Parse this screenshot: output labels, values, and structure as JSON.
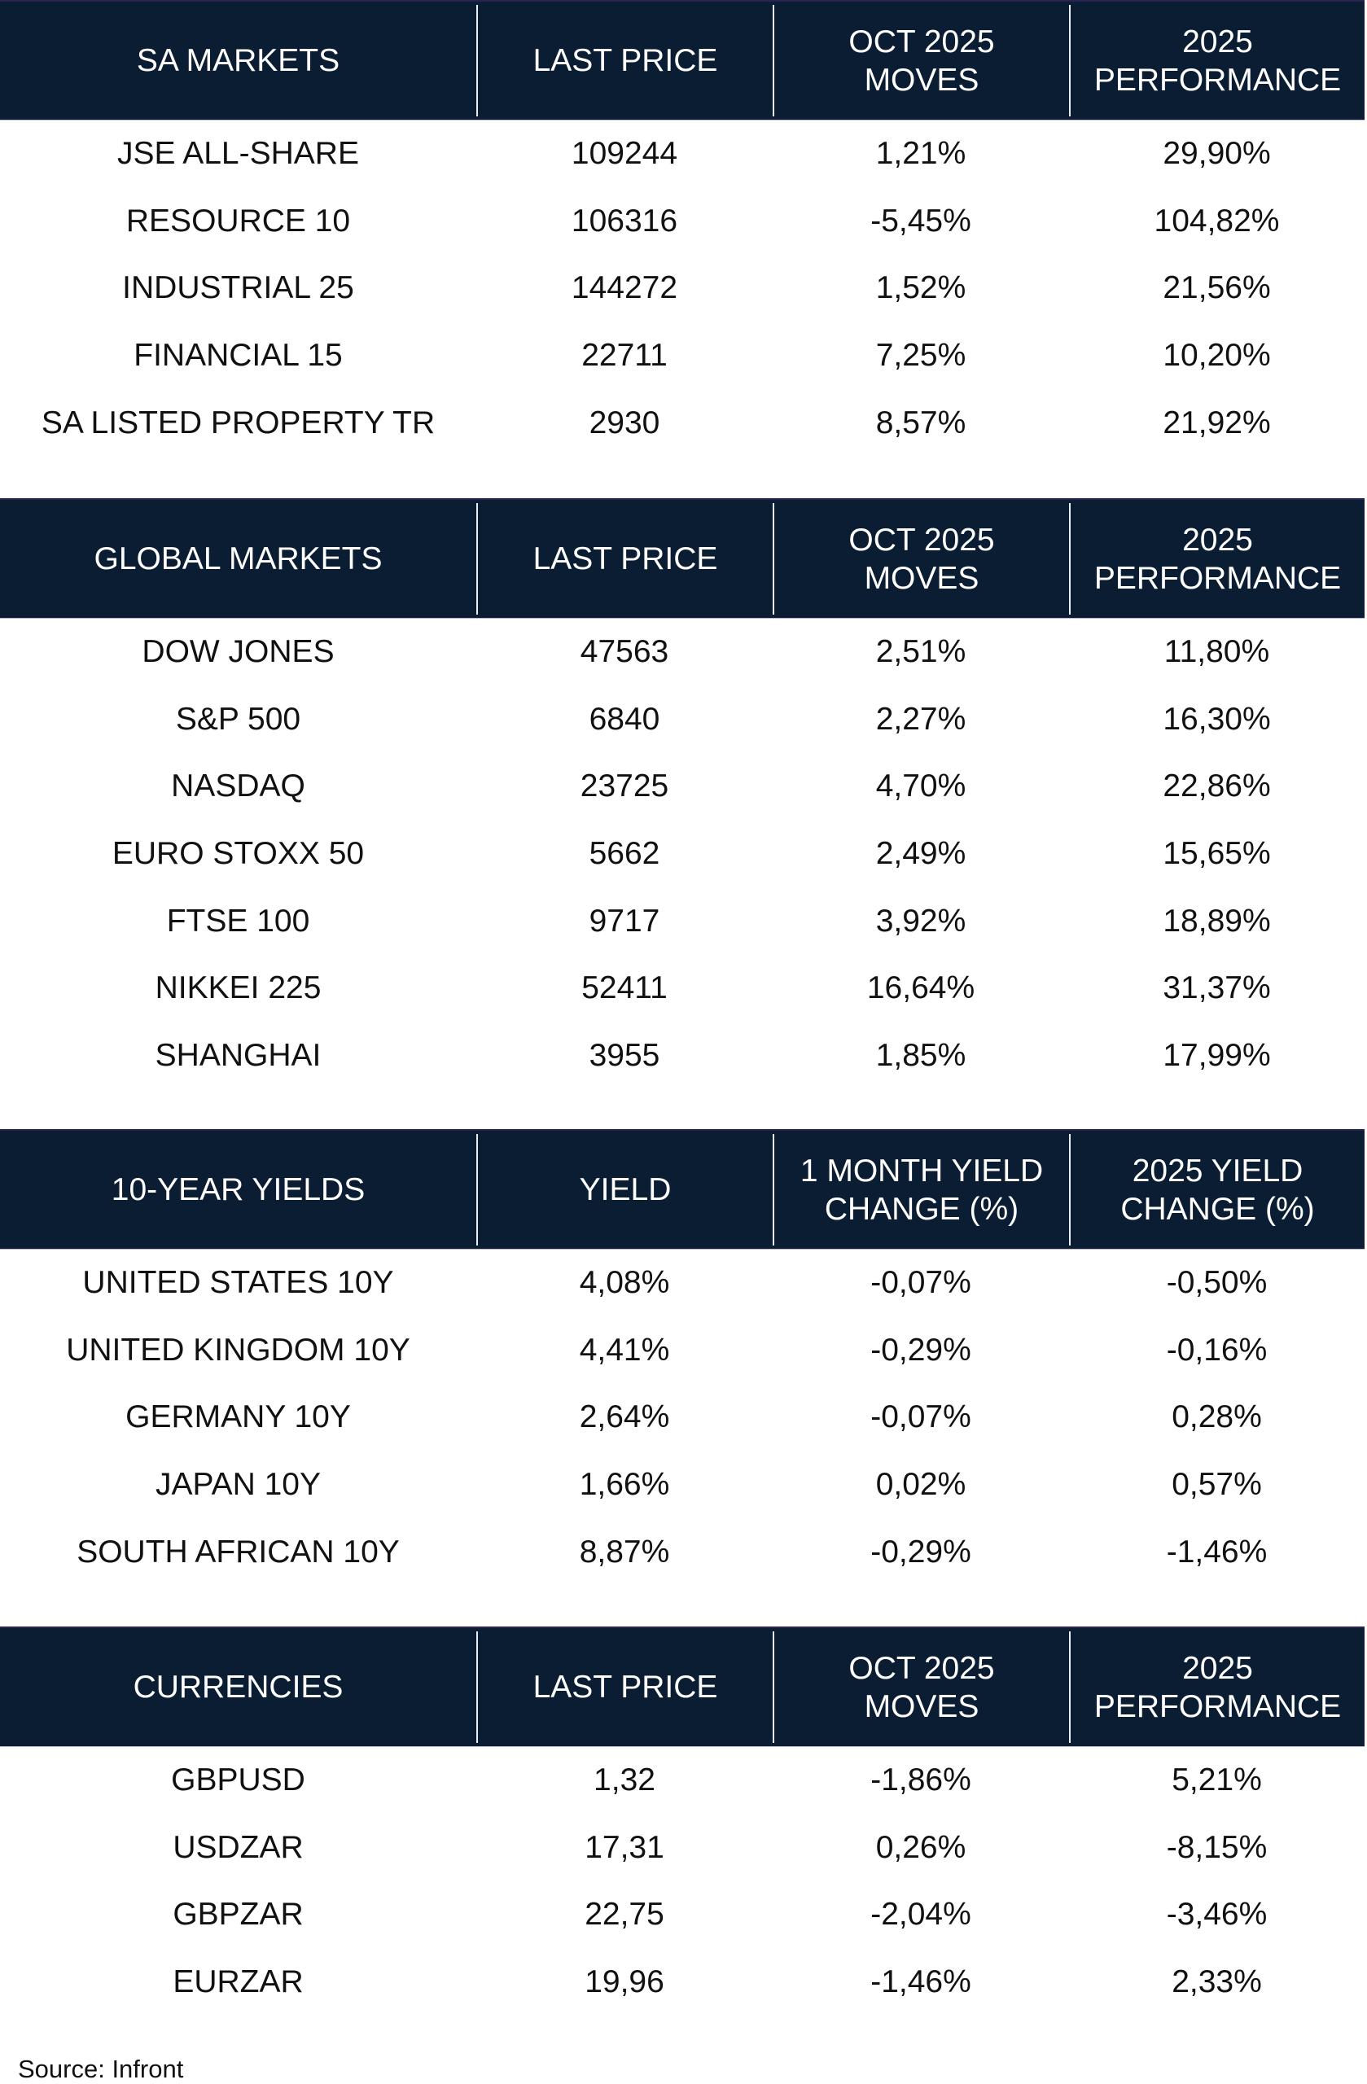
{
  "tables": [
    {
      "headers": [
        "SA MARKETS",
        "LAST PRICE",
        "OCT 2025\nMOVES",
        "2025\nPERFORMANCE"
      ],
      "rows": [
        [
          "JSE ALL-SHARE",
          "109244",
          "1,21%",
          "29,90%"
        ],
        [
          "RESOURCE 10",
          "106316",
          "-5,45%",
          "104,82%"
        ],
        [
          "INDUSTRIAL 25",
          "144272",
          "1,52%",
          "21,56%"
        ],
        [
          "FINANCIAL 15",
          "22711",
          "7,25%",
          "10,20%"
        ],
        [
          "SA LISTED PROPERTY TR",
          "2930",
          "8,57%",
          "21,92%"
        ]
      ]
    },
    {
      "headers": [
        "GLOBAL MARKETS",
        "LAST PRICE",
        "OCT 2025\nMOVES",
        "2025\nPERFORMANCE"
      ],
      "rows": [
        [
          "DOW JONES",
          "47563",
          "2,51%",
          "11,80%"
        ],
        [
          "S&P 500",
          "6840",
          "2,27%",
          "16,30%"
        ],
        [
          "NASDAQ",
          "23725",
          "4,70%",
          "22,86%"
        ],
        [
          "EURO STOXX 50",
          "5662",
          "2,49%",
          "15,65%"
        ],
        [
          "FTSE 100",
          "9717",
          "3,92%",
          "18,89%"
        ],
        [
          "NIKKEI 225",
          "52411",
          "16,64%",
          "31,37%"
        ],
        [
          "SHANGHAI",
          "3955",
          "1,85%",
          "17,99%"
        ]
      ]
    },
    {
      "headers": [
        "10-YEAR YIELDS",
        "YIELD",
        "1 MONTH YIELD\nCHANGE (%)",
        "2025 YIELD\nCHANGE (%)"
      ],
      "rows": [
        [
          "UNITED STATES 10Y",
          "4,08%",
          "-0,07%",
          "-0,50%"
        ],
        [
          "UNITED KINGDOM 10Y",
          "4,41%",
          "-0,29%",
          "-0,16%"
        ],
        [
          "GERMANY 10Y",
          "2,64%",
          "-0,07%",
          "0,28%"
        ],
        [
          "JAPAN 10Y",
          "1,66%",
          "0,02%",
          "0,57%"
        ],
        [
          "SOUTH AFRICAN 10Y",
          "8,87%",
          "-0,29%",
          "-1,46%"
        ]
      ]
    },
    {
      "headers": [
        "CURRENCIES",
        "LAST PRICE",
        "OCT 2025\nMOVES",
        "2025\nPERFORMANCE"
      ],
      "rows": [
        [
          "GBPUSD",
          "1,32",
          "-1,86%",
          "5,21%"
        ],
        [
          "USDZAR",
          "17,31",
          "0,26%",
          "-8,15%"
        ],
        [
          "GBPZAR",
          "22,75",
          "-2,04%",
          "-3,46%"
        ],
        [
          "EURZAR",
          "19,96",
          "-1,46%",
          "2,33%"
        ]
      ]
    }
  ],
  "source": "Source: Infront",
  "colors": {
    "header_bg": "#0b1d33",
    "header_text": "#ffffff",
    "body_text": "#111111"
  }
}
